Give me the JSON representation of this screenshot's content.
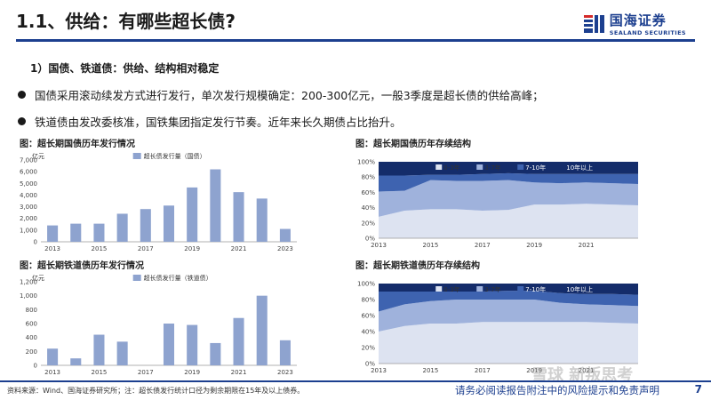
{
  "title": "1.1、供给：有哪些超长债?",
  "logo": {
    "cn": "国海证券",
    "en": "SEALAND SECURITIES"
  },
  "section": "1）国债、铁道债：供给、结构相对稳定",
  "bullets": [
    "国债采用滚动续发方式进行发行，单次发行规模确定：200-300亿元，一般3季度是超长债的供给高峰；",
    "铁道债由发改委核准，国铁集团指定发行节奏。近年来长久期债占比抬升。"
  ],
  "colors": {
    "brand": "#1c3f8f",
    "bar": "#8ea3cf",
    "s1": "#dde3f1",
    "s2": "#9fb2dc",
    "s3": "#3e63b0",
    "s4": "#142c6a"
  },
  "chart_data": [
    {
      "type": "bar",
      "figure_title": "图：超长期国债历年发行情况",
      "unit": "亿元",
      "legend": "超长债发行量（国债）",
      "categories": [
        "2013",
        "2014",
        "2015",
        "2016",
        "2017",
        "2018",
        "2019",
        "2020",
        "2021",
        "2022",
        "2023"
      ],
      "tick_labels": [
        "2013",
        "2015",
        "2017",
        "2019",
        "2021",
        "2023"
      ],
      "values": [
        1400,
        1550,
        1550,
        2400,
        2800,
        3100,
        4650,
        6200,
        4250,
        3700,
        1100
      ],
      "ylim": [
        0,
        7000
      ],
      "yticks": [
        "0",
        "1,000",
        "2,000",
        "3,000",
        "4,000",
        "5,000",
        "6,000",
        "7,000"
      ]
    },
    {
      "type": "area",
      "figure_title": "图：超长期国债历年存续结构",
      "x": [
        "2013",
        "2014",
        "2015",
        "2016",
        "2017",
        "2018",
        "2019",
        "2020",
        "2021",
        "2022",
        "2023"
      ],
      "tick_labels": [
        "2013",
        "2015",
        "2017",
        "2019",
        "2021"
      ],
      "ylim": [
        0,
        100
      ],
      "yticks": [
        "0%",
        "20%",
        "40%",
        "60%",
        "80%",
        "100%"
      ],
      "series": [
        {
          "name": "0-3年",
          "values": [
            28,
            36,
            38,
            38,
            36,
            37,
            44,
            44,
            45,
            44,
            43
          ]
        },
        {
          "name": "3-7年",
          "values": [
            33,
            26,
            38,
            37,
            39,
            39,
            29,
            28,
            28,
            28,
            28
          ]
        },
        {
          "name": "7-10年",
          "values": [
            21,
            20,
            7,
            8,
            9,
            9,
            11,
            12,
            11,
            12,
            13
          ]
        },
        {
          "name": "10年以上",
          "values": [
            18,
            18,
            17,
            17,
            16,
            15,
            16,
            16,
            16,
            16,
            16
          ]
        }
      ]
    },
    {
      "type": "bar",
      "figure_title": "图：超长期铁道债历年发行情况",
      "unit": "亿元",
      "legend": "超长债发行量（铁道债）",
      "categories": [
        "2013",
        "2014",
        "2015",
        "2016",
        "2017",
        "2018",
        "2019",
        "2020",
        "2021",
        "2022",
        "2023"
      ],
      "tick_labels": [
        "2013",
        "2015",
        "2017",
        "2019",
        "2021",
        "2023"
      ],
      "values": [
        240,
        100,
        440,
        340,
        0,
        600,
        580,
        320,
        680,
        1000,
        360
      ],
      "ylim": [
        0,
        1200
      ],
      "yticks": [
        "0",
        "200",
        "400",
        "600",
        "800",
        "1,000",
        "1,200"
      ]
    },
    {
      "type": "area",
      "figure_title": "图：超长期铁道债历年存续结构",
      "x": [
        "2013",
        "2014",
        "2015",
        "2016",
        "2017",
        "2018",
        "2019",
        "2020",
        "2021",
        "2022",
        "2023"
      ],
      "tick_labels": [
        "2013",
        "2015",
        "2017",
        "2019",
        "2021"
      ],
      "ylim": [
        0,
        100
      ],
      "yticks": [
        "0%",
        "20%",
        "40%",
        "60%",
        "80%",
        "100%"
      ],
      "series": [
        {
          "name": "0-3年",
          "values": [
            40,
            47,
            50,
            50,
            52,
            52,
            52,
            52,
            52,
            51,
            50
          ]
        },
        {
          "name": "3-7年",
          "values": [
            25,
            27,
            28,
            30,
            28,
            28,
            28,
            24,
            22,
            22,
            22
          ]
        },
        {
          "name": "7-10年",
          "values": [
            25,
            16,
            12,
            10,
            10,
            11,
            11,
            12,
            13,
            14,
            14
          ]
        },
        {
          "name": "10年以上",
          "values": [
            10,
            10,
            10,
            10,
            10,
            9,
            9,
            12,
            13,
            13,
            14
          ]
        }
      ]
    }
  ],
  "footer": {
    "source": "资料来源：Wind、国海证券研究所；注：超长债发行统计口径为剩余期限在15年及以上债券。",
    "disclaimer": "请务必阅读报告附注中的风险提示和免责声明",
    "page": "7",
    "watermark": "雪球 新叛思考"
  }
}
